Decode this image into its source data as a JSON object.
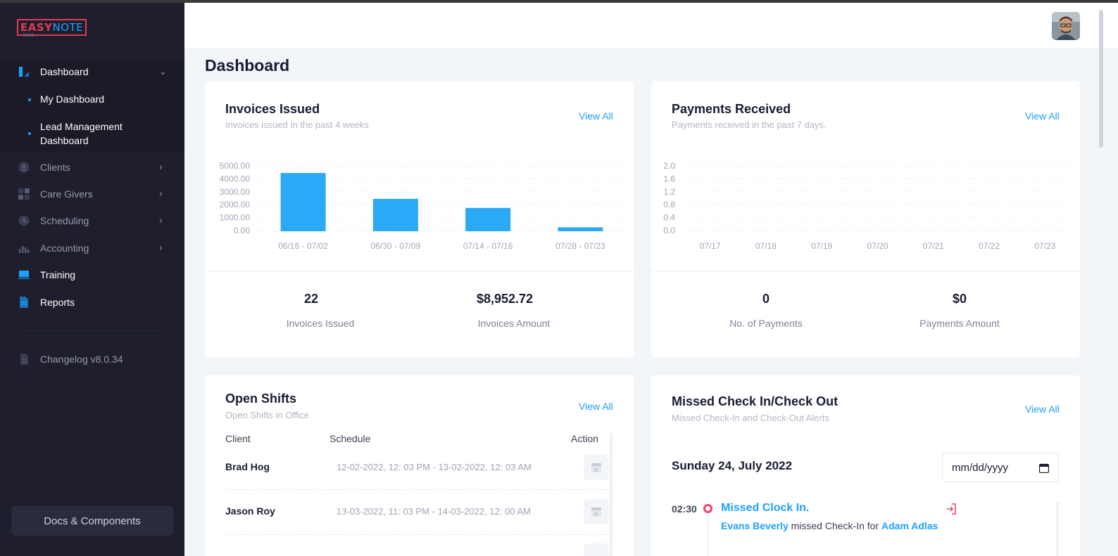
{
  "app": {
    "logo_main": "EASY",
    "logo_accent": "NOTE",
    "logo_sub": "CARE"
  },
  "sidebar": {
    "items": [
      {
        "label": "Dashboard",
        "icon": "dashboard-icon",
        "active": true
      },
      {
        "label": "Clients",
        "icon": "user-icon"
      },
      {
        "label": "Care Givers",
        "icon": "grid-icon"
      },
      {
        "label": "Scheduling",
        "icon": "clock-icon"
      },
      {
        "label": "Accounting",
        "icon": "bar-chart-icon"
      },
      {
        "label": "Training",
        "icon": "laptop-icon"
      },
      {
        "label": "Reports",
        "icon": "document-icon"
      }
    ],
    "sub_items": [
      {
        "label": "My Dashboard"
      },
      {
        "label": "Lead Management Dashboard"
      }
    ],
    "changelog": "Changelog v8.0.34",
    "docs_button": "Docs & Components"
  },
  "page": {
    "title": "Dashboard"
  },
  "invoices": {
    "title": "Invoices Issued",
    "subtitle": "Invoices issued in the past 4 weeks",
    "view_all": "View All",
    "stat1_value": "22",
    "stat1_label": "Invoices Issued",
    "stat2_value": "$8,952.72",
    "stat2_label": "Invoices Amount"
  },
  "payments": {
    "title": "Payments Received",
    "subtitle": "Payments received in the past 7 days.",
    "view_all": "View All",
    "stat1_value": "0",
    "stat1_label": "No. of Payments",
    "stat2_value": "$0",
    "stat2_label": "Payments Amount"
  },
  "open_shifts": {
    "title": "Open Shifts",
    "subtitle": "Open Shifts in Office",
    "view_all": "View All",
    "columns": {
      "client": "Client",
      "schedule": "Schedule",
      "action": "Action"
    },
    "rows": [
      {
        "client": "Brad Hog",
        "schedule": "12-02-2022, 12: 03 PM - 13-02-2022, 12: 03 AM"
      },
      {
        "client": "Jason Roy",
        "schedule": "13-03-2022, 11: 03 PM - 14-03-2022, 12: 00 AM"
      }
    ]
  },
  "missed": {
    "title": "Missed Check In/Check Out",
    "subtitle": "Missed Check-In and Check-Out Alerts",
    "view_all": "View All",
    "date_heading": "Sunday 24, July 2022",
    "date_placeholder": "mm/dd/yyyy",
    "events": [
      {
        "time": "02:30",
        "title": "Missed Clock In.",
        "who": "Evans Beverly",
        "action": "missed Check-In for",
        "client": "Adam Adlas"
      }
    ]
  },
  "colors": {
    "accent": "#1ea1ff",
    "sidebar_bg": "#1e1e2d",
    "bar": "#2aa9f7",
    "alert": "#f1416c"
  },
  "chart_data": [
    {
      "type": "bar",
      "categories": [
        "06/16 - 07/02",
        "06/30 - 07/09",
        "07/14 - 07/16",
        "07/28 - 07/23"
      ],
      "values": [
        4450,
        2450,
        1750,
        250
      ],
      "yticks": [
        "5000.00",
        "4000.00",
        "3000.00",
        "2000.00",
        "1000.00",
        "0.00"
      ],
      "ylim": [
        0,
        5000
      ],
      "grid": true
    },
    {
      "type": "line",
      "categories": [
        "07/17",
        "07/18",
        "07/19",
        "07/20",
        "07/21",
        "07/22",
        "07/23"
      ],
      "values": [
        0,
        0,
        0,
        0,
        0,
        0,
        0
      ],
      "yticks": [
        "2.0",
        "1.6",
        "1.2",
        "0.8",
        "0.4",
        "0.0"
      ],
      "ylim": [
        0,
        2
      ],
      "grid": true
    }
  ]
}
